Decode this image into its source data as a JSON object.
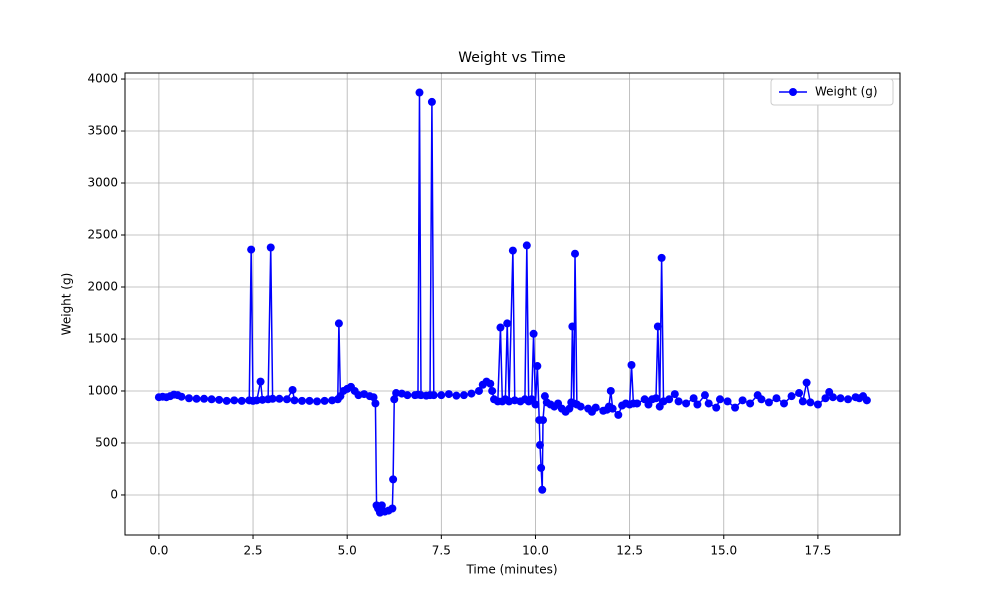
{
  "chart_data": {
    "type": "line",
    "title": "Weight vs Time",
    "x_label": "Time (minutes)",
    "y_label": "Weight (g)",
    "x": [
      0,
      0.1,
      0.2,
      0.3,
      0.4,
      0.5,
      0.6,
      0.8,
      1.0,
      1.2,
      1.4,
      1.6,
      1.8,
      2.0,
      2.2,
      2.4,
      2.45,
      2.5,
      2.6,
      2.7,
      2.75,
      2.9,
      2.97,
      3.02,
      3.2,
      3.4,
      3.55,
      3.6,
      3.8,
      4.0,
      4.2,
      4.4,
      4.6,
      4.75,
      4.78,
      4.82,
      4.9,
      5.0,
      5.1,
      5.2,
      5.3,
      5.45,
      5.6,
      5.7,
      5.75,
      5.78,
      5.82,
      5.87,
      5.92,
      6.0,
      6.1,
      6.2,
      6.22,
      6.25,
      6.3,
      6.45,
      6.6,
      6.8,
      6.88,
      6.92,
      6.96,
      7.1,
      7.2,
      7.25,
      7.3,
      7.5,
      7.7,
      7.9,
      8.1,
      8.3,
      8.5,
      8.6,
      8.7,
      8.8,
      8.85,
      8.9,
      9.0,
      9.07,
      9.12,
      9.2,
      9.25,
      9.3,
      9.4,
      9.45,
      9.6,
      9.72,
      9.77,
      9.82,
      9.9,
      9.95,
      10.0,
      10.05,
      10.1,
      10.12,
      10.15,
      10.18,
      10.2,
      10.25,
      10.3,
      10.4,
      10.5,
      10.6,
      10.7,
      10.8,
      10.9,
      10.95,
      10.98,
      11.02,
      11.05,
      11.1,
      11.2,
      11.4,
      11.5,
      11.6,
      11.8,
      11.9,
      11.95,
      12.0,
      12.05,
      12.2,
      12.3,
      12.4,
      12.5,
      12.55,
      12.6,
      12.7,
      12.9,
      13.0,
      13.1,
      13.2,
      13.25,
      13.3,
      13.35,
      13.4,
      13.55,
      13.7,
      13.8,
      14.0,
      14.2,
      14.3,
      14.5,
      14.6,
      14.8,
      14.9,
      15.1,
      15.3,
      15.5,
      15.7,
      15.9,
      16.0,
      16.2,
      16.4,
      16.6,
      16.8,
      17.0,
      17.1,
      17.2,
      17.3,
      17.5,
      17.7,
      17.8,
      17.9,
      18.1,
      18.3,
      18.5,
      18.6,
      18.7,
      18.8
    ],
    "series": [
      {
        "name": "Weight (g)",
        "color": "#0000ff",
        "values": [
          940,
          945,
          940,
          950,
          965,
          960,
          945,
          930,
          925,
          925,
          920,
          915,
          905,
          910,
          905,
          910,
          2360,
          905,
          910,
          1090,
          915,
          920,
          2380,
          925,
          925,
          920,
          1010,
          910,
          905,
          905,
          900,
          905,
          910,
          920,
          1650,
          950,
          1000,
          1020,
          1040,
          1000,
          960,
          970,
          950,
          940,
          880,
          -100,
          -130,
          -170,
          -100,
          -160,
          -150,
          -130,
          150,
          920,
          980,
          975,
          960,
          960,
          965,
          3870,
          960,
          955,
          960,
          3780,
          960,
          960,
          970,
          955,
          960,
          975,
          1000,
          1060,
          1090,
          1070,
          1000,
          920,
          900,
          1610,
          900,
          920,
          1650,
          900,
          2350,
          910,
          900,
          920,
          2400,
          900,
          920,
          1550,
          870,
          1240,
          720,
          480,
          260,
          50,
          720,
          950,
          890,
          870,
          850,
          880,
          830,
          800,
          830,
          890,
          1620,
          880,
          2320,
          870,
          850,
          830,
          800,
          840,
          810,
          820,
          850,
          1000,
          830,
          770,
          860,
          880,
          870,
          1250,
          880,
          880,
          920,
          870,
          920,
          930,
          1620,
          850,
          2280,
          900,
          920,
          970,
          900,
          880,
          930,
          870,
          960,
          880,
          840,
          920,
          900,
          840,
          910,
          880,
          960,
          920,
          890,
          930,
          880,
          950,
          980,
          900,
          1080,
          890,
          870,
          930,
          990,
          940,
          930,
          920,
          940,
          930,
          950,
          910
        ]
      }
    ],
    "xlim": [
      -0.9,
      19.68
    ],
    "ylim": [
      -385,
      4058
    ],
    "xticks": [
      {
        "value": 0,
        "label": "0.0"
      },
      2.5,
      {
        "value": 5,
        "label": "5.0"
      },
      7.5,
      {
        "value": 10,
        "label": "10.0"
      },
      12.5,
      {
        "value": 15,
        "label": "15.0"
      },
      17.5
    ],
    "yticks": [
      0,
      500,
      1000,
      1500,
      2000,
      2500,
      3000,
      3500,
      4000
    ],
    "grid": true,
    "legend": "upper right"
  }
}
